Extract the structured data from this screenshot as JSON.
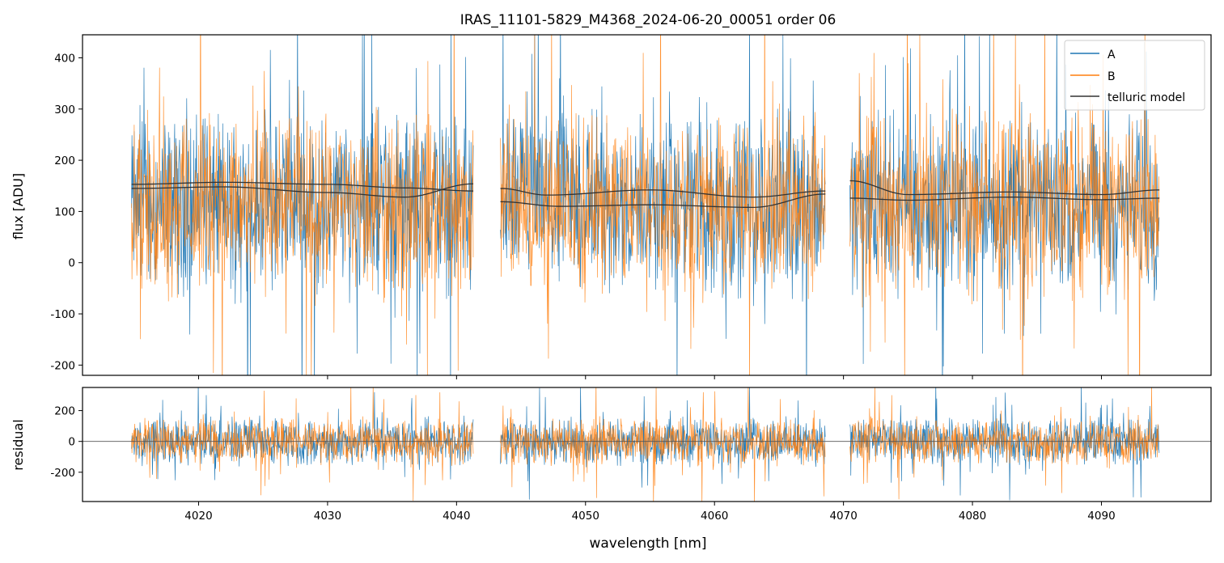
{
  "figure": {
    "title": "IRAS_11101-5829_M4368_2024-06-20_00051  order 06"
  },
  "legend": {
    "placement": "upper-right",
    "entries": [
      {
        "label": "A",
        "color": "#1f77b4"
      },
      {
        "label": "B",
        "color": "#ff7f0e"
      },
      {
        "label": "telluric model",
        "color": "#333333"
      }
    ]
  },
  "chart_data": [
    {
      "type": "line",
      "panel": "flux",
      "xlabel": "",
      "ylabel": "flux [ADU]",
      "xlim": [
        4011,
        4098.5
      ],
      "ylim": [
        -220,
        445
      ],
      "yticks": [
        -200,
        -100,
        0,
        100,
        200,
        300,
        400
      ],
      "xticks": [
        4020,
        4030,
        4040,
        4050,
        4060,
        4070,
        4080,
        4090
      ],
      "show_xtick_labels": false,
      "grid": false,
      "segments": [
        {
          "x_start": 4014.8,
          "x_end": 4041.3
        },
        {
          "x_start": 4043.4,
          "x_end": 4068.6
        },
        {
          "x_start": 4070.5,
          "x_end": 4094.5
        }
      ],
      "series": [
        {
          "name": "A",
          "color": "#1f77b4",
          "style": "noisy",
          "center": 115,
          "spread": 110
        },
        {
          "name": "B",
          "color": "#ff7f0e",
          "style": "noisy",
          "center": 115,
          "spread": 110
        },
        {
          "name": "telluric model",
          "color": "#333333",
          "style": "model",
          "curves": [
            {
              "x": [
                4014.8,
                4022,
                4030,
                4036,
                4041.3
              ],
              "y": [
                153,
                157,
                153,
                146,
                140
              ]
            },
            {
              "x": [
                4014.8,
                4022,
                4030,
                4036,
                4041.3
              ],
              "y": [
                145,
                148,
                137,
                128,
                154
              ]
            },
            {
              "x": [
                4043.4,
                4047,
                4055,
                4063,
                4068.6
              ],
              "y": [
                145,
                132,
                142,
                128,
                140
              ]
            },
            {
              "x": [
                4043.4,
                4048,
                4055,
                4063,
                4068.6
              ],
              "y": [
                119,
                110,
                113,
                108,
                134
              ]
            },
            {
              "x": [
                4070.5,
                4075,
                4083,
                4090,
                4094.5
              ],
              "y": [
                160,
                133,
                138,
                133,
                142
              ]
            },
            {
              "x": [
                4070.5,
                4075,
                4083,
                4090,
                4094.5
              ],
              "y": [
                126,
                122,
                128,
                123,
                126
              ]
            }
          ]
        }
      ]
    },
    {
      "type": "line",
      "panel": "residual",
      "xlabel": "wavelength [nm]",
      "ylabel": "residual",
      "xlim": [
        4011,
        4098.5
      ],
      "ylim": [
        -390,
        350
      ],
      "yticks": [
        -200,
        0,
        200
      ],
      "xticks": [
        4020,
        4030,
        4040,
        4050,
        4060,
        4070,
        4080,
        4090
      ],
      "show_xtick_labels": true,
      "grid": false,
      "zero_line": true,
      "series": [
        {
          "name": "A",
          "color": "#1f77b4",
          "style": "noisy",
          "center": 0,
          "spread": 95
        },
        {
          "name": "B",
          "color": "#ff7f0e",
          "style": "noisy",
          "center": 0,
          "spread": 95
        }
      ]
    }
  ]
}
